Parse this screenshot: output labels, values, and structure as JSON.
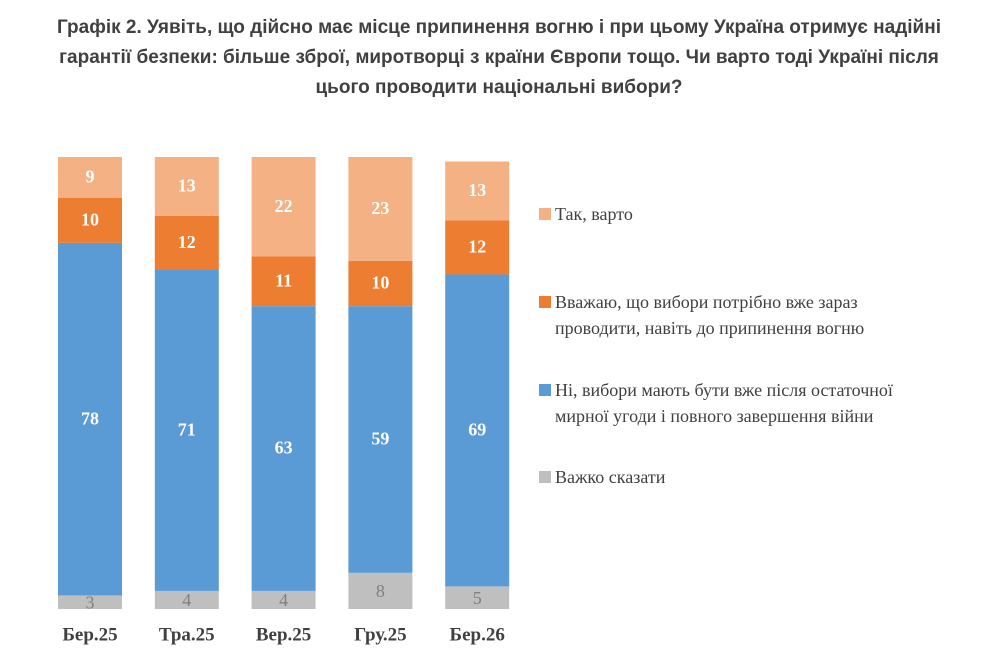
{
  "chart_data": {
    "type": "stacked_bar",
    "title": "Графік 2. Уявіть, що дійсно має місце припинення вогню і при цьому Україна отримує надійні гарантії безпеки: більше зброї, миротворці з країни Європи тощо. Чи варто тоді Україні після цього проводити національні вибори?",
    "categories": [
      "Бер.25",
      "Тра.25",
      "Вер.25",
      "Гру.25",
      "Бер.26"
    ],
    "ylim": [
      0,
      100
    ],
    "series": [
      {
        "name": "Важко сказати",
        "color": "#bfbfbf",
        "values": [
          3,
          4,
          4,
          8,
          5
        ]
      },
      {
        "name": "Ні, вибори мають бути вже після остаточної мирної угоди і повного завершення війни",
        "color": "#5b9bd5",
        "values": [
          78,
          71,
          63,
          59,
          69
        ]
      },
      {
        "name": "Вважаю, що вибори потрібно вже зараз проводити, навіть до припинення вогню",
        "color": "#ed7d31",
        "values": [
          10,
          12,
          11,
          10,
          12
        ]
      },
      {
        "name": "Так, варто",
        "color": "#f4b183",
        "values": [
          9,
          13,
          22,
          23,
          13
        ]
      }
    ]
  }
}
